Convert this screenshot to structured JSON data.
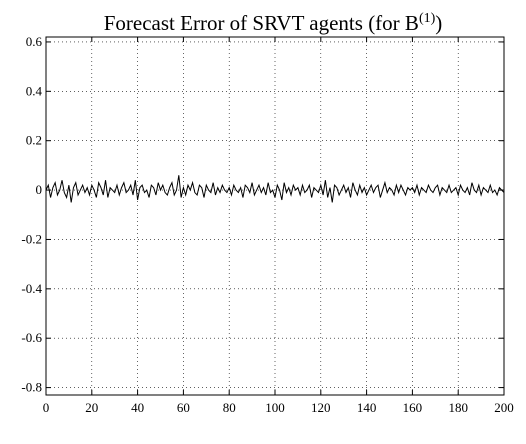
{
  "chart_data": {
    "type": "line",
    "title": "Forecast Error of SRVT agents (for B",
    "title_superscript": "(1)",
    "title_suffix": ")",
    "xlabel": "",
    "ylabel": "",
    "xlim": [
      0,
      200
    ],
    "ylim": [
      -0.83,
      0.62
    ],
    "grid": true,
    "x_ticks": [
      0,
      20,
      40,
      60,
      80,
      100,
      120,
      140,
      160,
      180,
      200
    ],
    "x_tick_labels": [
      "0",
      "20",
      "40",
      "60",
      "80",
      "100",
      "120",
      "140",
      "160",
      "180",
      "200"
    ],
    "y_ticks": [
      0.6,
      0.4,
      0.2,
      0,
      -0.2,
      -0.4,
      -0.6,
      -0.8
    ],
    "y_tick_labels": [
      "0.6",
      "0.4",
      "0.2",
      "0",
      "-0.2",
      "-0.4",
      "-0.6",
      "-0.8"
    ],
    "series": [
      {
        "color": "#000000",
        "x_start": 0,
        "x_step": 1,
        "values": [
          0.0,
          0.02,
          -0.03,
          0.01,
          0.03,
          -0.02,
          0.0,
          0.04,
          -0.01,
          -0.03,
          0.02,
          -0.05,
          0.01,
          0.03,
          -0.02,
          0.0,
          0.02,
          -0.01,
          0.01,
          -0.02,
          0.02,
          0.0,
          -0.03,
          0.03,
          0.01,
          -0.02,
          0.04,
          -0.03,
          0.01,
          0.0,
          -0.01,
          0.02,
          -0.02,
          0.01,
          0.03,
          -0.01,
          0.0,
          0.02,
          -0.02,
          0.04,
          -0.04,
          0.01,
          0.02,
          -0.01,
          0.0,
          -0.03,
          0.02,
          0.01,
          -0.02,
          0.03,
          0.0,
          0.02,
          -0.01,
          -0.02,
          0.01,
          0.03,
          -0.02,
          0.0,
          0.06,
          -0.03,
          0.01,
          -0.02,
          0.02,
          0.0,
          0.03,
          -0.01,
          -0.02,
          0.02,
          0.01,
          -0.03,
          0.02,
          0.0,
          -0.01,
          0.03,
          -0.02,
          0.01,
          -0.01,
          0.02,
          0.0,
          -0.01,
          0.01,
          -0.02,
          0.02,
          0.0,
          -0.01,
          0.01,
          -0.03,
          0.02,
          0.01,
          -0.01,
          0.03,
          -0.02,
          0.0,
          0.02,
          -0.01,
          0.01,
          -0.02,
          0.03,
          -0.01,
          0.0,
          -0.03,
          0.02,
          0.0,
          -0.04,
          0.03,
          -0.01,
          0.01,
          -0.02,
          0.02,
          0.0,
          0.01,
          -0.02,
          0.02,
          -0.01,
          0.0,
          0.02,
          -0.03,
          0.01,
          0.0,
          -0.01,
          0.02,
          -0.02,
          0.04,
          -0.03,
          0.01,
          -0.05,
          0.02,
          0.01,
          -0.02,
          0.0,
          0.02,
          -0.01,
          0.01,
          -0.03,
          0.03,
          0.0,
          -0.02,
          0.02,
          -0.01,
          0.01,
          -0.02,
          0.0,
          0.02,
          -0.01,
          0.01,
          0.02,
          -0.03,
          0.0,
          0.03,
          -0.01,
          0.01,
          0.0,
          -0.02,
          0.02,
          -0.01,
          0.02,
          0.0,
          -0.02,
          0.01,
          0.0,
          0.01,
          -0.01,
          0.02,
          -0.02,
          0.01,
          0.0,
          -0.01,
          0.02,
          0.0,
          -0.01,
          0.01,
          0.02,
          -0.02,
          0.01,
          0.0,
          -0.01,
          0.02,
          -0.01,
          0.0,
          0.01,
          -0.02,
          0.02,
          0.0,
          -0.01,
          0.01,
          -0.02,
          0.03,
          0.0,
          -0.01,
          0.02,
          -0.02,
          0.01,
          0.0,
          -0.01,
          0.02,
          -0.01,
          0.0,
          -0.02,
          0.01,
          0.0,
          -0.01
        ]
      }
    ]
  }
}
